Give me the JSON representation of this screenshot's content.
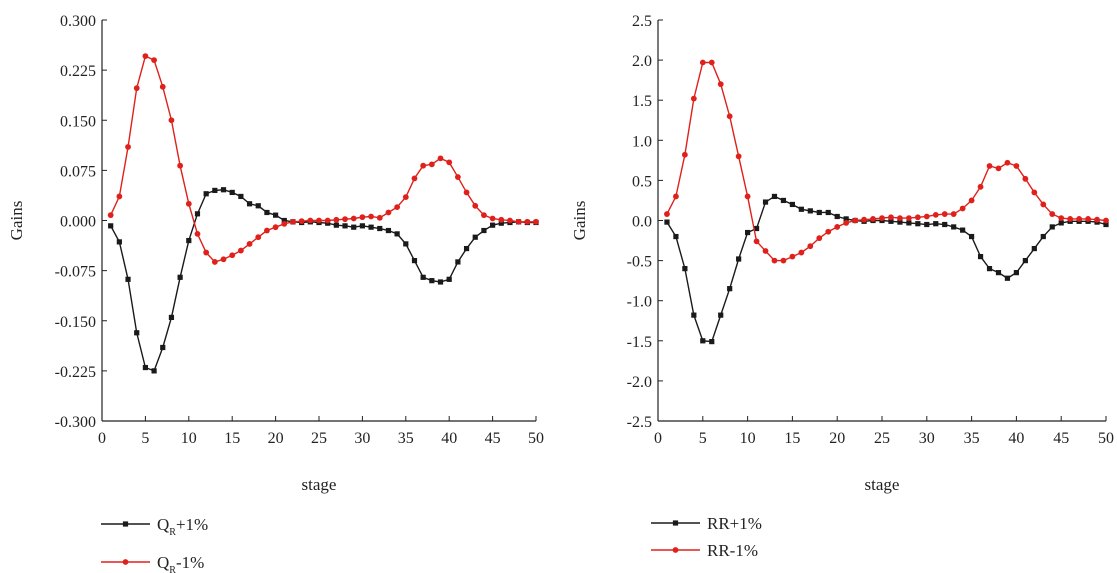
{
  "charts": [
    {
      "type": "line",
      "ylabel": "Gains",
      "xlabel": "stage",
      "xlim": [
        0,
        50
      ],
      "ylim": [
        -0.3,
        0.3
      ],
      "xticks": [
        "0",
        "5",
        "10",
        "15",
        "20",
        "25",
        "30",
        "35",
        "40",
        "45",
        "50"
      ],
      "yticks": [
        "-0.300",
        "-0.225",
        "-0.150",
        "-0.075",
        "0.000",
        "0.075",
        "0.150",
        "0.225",
        "0.300"
      ],
      "legend": [
        {
          "name": "Q",
          "sub": "R",
          "suffix": "+1%"
        },
        {
          "name": "Q",
          "sub": "R",
          "suffix": "-1%"
        }
      ],
      "series": [
        {
          "name": "QR+1%",
          "color": "#1a1a1a",
          "marker": "square",
          "x": [
            1,
            2,
            3,
            4,
            5,
            6,
            7,
            8,
            9,
            10,
            11,
            12,
            13,
            14,
            15,
            16,
            17,
            18,
            19,
            20,
            21,
            22,
            23,
            24,
            25,
            26,
            27,
            28,
            29,
            30,
            31,
            32,
            33,
            34,
            35,
            36,
            37,
            38,
            39,
            40,
            41,
            42,
            43,
            44,
            45,
            46,
            47,
            48,
            49,
            50
          ],
          "values": [
            -0.008,
            -0.032,
            -0.088,
            -0.168,
            -0.22,
            -0.225,
            -0.19,
            -0.145,
            -0.085,
            -0.03,
            0.01,
            0.04,
            0.045,
            0.046,
            0.042,
            0.036,
            0.025,
            0.022,
            0.012,
            0.008,
            0.0,
            -0.002,
            -0.003,
            -0.002,
            -0.003,
            -0.004,
            -0.007,
            -0.008,
            -0.01,
            -0.008,
            -0.01,
            -0.012,
            -0.015,
            -0.02,
            -0.035,
            -0.06,
            -0.085,
            -0.09,
            -0.092,
            -0.088,
            -0.062,
            -0.042,
            -0.025,
            -0.015,
            -0.007,
            -0.004,
            -0.003,
            -0.002,
            -0.003,
            -0.003
          ]
        },
        {
          "name": "QR-1%",
          "color": "#e0201b",
          "marker": "circle",
          "x": [
            1,
            2,
            3,
            4,
            5,
            6,
            7,
            8,
            9,
            10,
            11,
            12,
            13,
            14,
            15,
            16,
            17,
            18,
            19,
            20,
            21,
            22,
            23,
            24,
            25,
            26,
            27,
            28,
            29,
            30,
            31,
            32,
            33,
            34,
            35,
            36,
            37,
            38,
            39,
            40,
            41,
            42,
            43,
            44,
            45,
            46,
            47,
            48,
            49,
            50
          ],
          "values": [
            0.008,
            0.036,
            0.11,
            0.198,
            0.246,
            0.24,
            0.2,
            0.15,
            0.082,
            0.025,
            -0.02,
            -0.048,
            -0.062,
            -0.058,
            -0.052,
            -0.045,
            -0.035,
            -0.025,
            -0.015,
            -0.01,
            -0.005,
            -0.002,
            -0.001,
            0.0,
            0.0,
            0.0,
            0.001,
            0.002,
            0.003,
            0.005,
            0.006,
            0.004,
            0.012,
            0.02,
            0.035,
            0.063,
            0.082,
            0.084,
            0.093,
            0.087,
            0.065,
            0.042,
            0.022,
            0.008,
            0.003,
            0.001,
            0.0,
            -0.002,
            -0.002,
            -0.002
          ]
        }
      ]
    },
    {
      "type": "line",
      "ylabel": "Gains",
      "xlabel": "stage",
      "xlim": [
        0,
        50
      ],
      "ylim": [
        -2.5,
        2.5
      ],
      "xticks": [
        "0",
        "5",
        "10",
        "15",
        "20",
        "25",
        "30",
        "35",
        "40",
        "45",
        "50"
      ],
      "yticks": [
        "-2.5",
        "-2.0",
        "-1.5",
        "-1.0",
        "-0.5",
        "0.0",
        "0.5",
        "1.0",
        "1.5",
        "2.0",
        "2.5"
      ],
      "legend": [
        {
          "name": "RR+1%",
          "sub": "",
          "suffix": ""
        },
        {
          "name": "RR-1%",
          "sub": "",
          "suffix": ""
        }
      ],
      "series": [
        {
          "name": "RR+1%",
          "color": "#1a1a1a",
          "marker": "square",
          "x": [
            1,
            2,
            3,
            4,
            5,
            6,
            7,
            8,
            9,
            10,
            11,
            12,
            13,
            14,
            15,
            16,
            17,
            18,
            19,
            20,
            21,
            22,
            23,
            24,
            25,
            26,
            27,
            28,
            29,
            30,
            31,
            32,
            33,
            34,
            35,
            36,
            37,
            38,
            39,
            40,
            41,
            42,
            43,
            44,
            45,
            46,
            47,
            48,
            49,
            50
          ],
          "values": [
            -0.02,
            -0.2,
            -0.6,
            -1.18,
            -1.5,
            -1.51,
            -1.18,
            -0.85,
            -0.48,
            -0.15,
            -0.1,
            0.23,
            0.3,
            0.25,
            0.2,
            0.14,
            0.12,
            0.1,
            0.1,
            0.05,
            0.02,
            0.0,
            -0.01,
            0.0,
            0.0,
            -0.01,
            -0.02,
            -0.03,
            -0.04,
            -0.05,
            -0.04,
            -0.05,
            -0.08,
            -0.12,
            -0.2,
            -0.45,
            -0.6,
            -0.65,
            -0.72,
            -0.65,
            -0.5,
            -0.35,
            -0.2,
            -0.08,
            -0.03,
            -0.01,
            -0.01,
            -0.01,
            -0.02,
            -0.05
          ]
        },
        {
          "name": "RR-1%",
          "color": "#e0201b",
          "marker": "circle",
          "x": [
            1,
            2,
            3,
            4,
            5,
            6,
            7,
            8,
            9,
            10,
            11,
            12,
            13,
            14,
            15,
            16,
            17,
            18,
            19,
            20,
            21,
            22,
            23,
            24,
            25,
            26,
            27,
            28,
            29,
            30,
            31,
            32,
            33,
            34,
            35,
            36,
            37,
            38,
            39,
            40,
            41,
            42,
            43,
            44,
            45,
            46,
            47,
            48,
            49,
            50
          ],
          "values": [
            0.08,
            0.3,
            0.82,
            1.52,
            1.97,
            1.97,
            1.7,
            1.3,
            0.8,
            0.3,
            -0.26,
            -0.38,
            -0.5,
            -0.5,
            -0.45,
            -0.4,
            -0.32,
            -0.22,
            -0.14,
            -0.08,
            -0.03,
            0.0,
            0.01,
            0.02,
            0.03,
            0.04,
            0.03,
            0.03,
            0.04,
            0.05,
            0.07,
            0.08,
            0.08,
            0.15,
            0.25,
            0.42,
            0.68,
            0.65,
            0.72,
            0.68,
            0.52,
            0.35,
            0.2,
            0.08,
            0.03,
            0.02,
            0.02,
            0.02,
            0.01,
            0.0
          ]
        }
      ]
    }
  ]
}
